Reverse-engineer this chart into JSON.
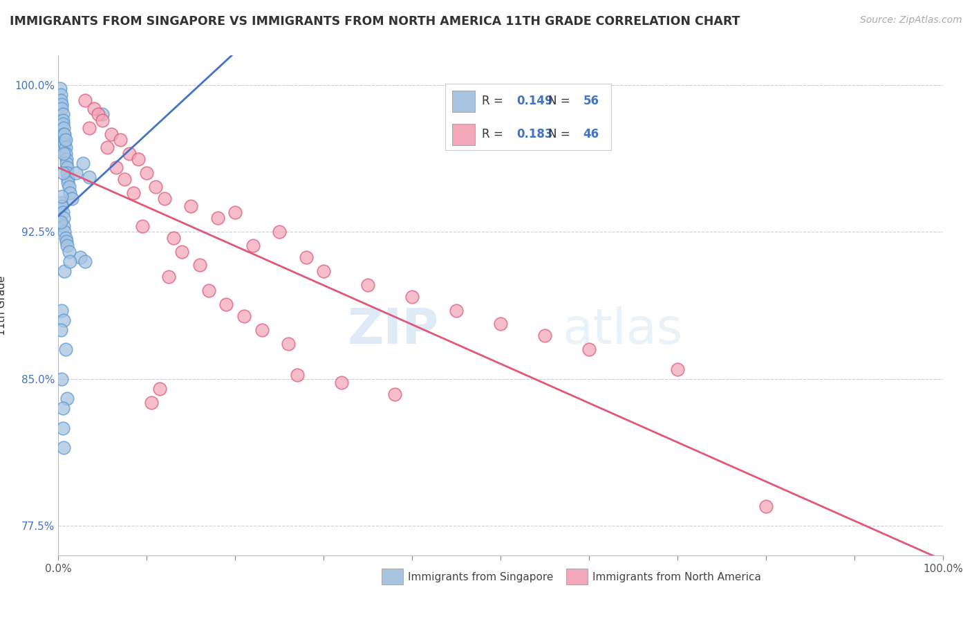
{
  "title": "IMMIGRANTS FROM SINGAPORE VS IMMIGRANTS FROM NORTH AMERICA 11TH GRADE CORRELATION CHART",
  "source": "Source: ZipAtlas.com",
  "ylabel": "11th Grade",
  "yticks": [
    77.5,
    85.0,
    92.5,
    100.0
  ],
  "ytick_labels": [
    "77.5%",
    "85.0%",
    "92.5%",
    "100.0%"
  ],
  "xtick_labels": [
    "0.0%",
    "100.0%"
  ],
  "legend1_label": "Immigrants from Singapore",
  "legend2_label": "Immigrants from North America",
  "R1": 0.149,
  "N1": 56,
  "R2": 0.183,
  "N2": 46,
  "color_blue": "#a8c4e0",
  "color_blue_edge": "#5b9bd5",
  "color_pink": "#f4a7b9",
  "color_pink_edge": "#e05a7a",
  "color_trend_blue": "#4472c4",
  "color_trend_pink": "#e05878",
  "color_text_blue": "#4472c4",
  "watermark_zip": "ZIP",
  "watermark_atlas": "atlas",
  "blue_points_x": [
    0.2,
    0.3,
    0.3,
    0.4,
    0.4,
    0.5,
    0.5,
    0.5,
    0.6,
    0.6,
    0.7,
    0.7,
    0.8,
    0.8,
    0.9,
    0.9,
    1.0,
    1.0,
    1.1,
    1.1,
    1.2,
    1.3,
    1.5,
    0.3,
    0.4,
    0.5,
    0.6,
    0.6,
    0.7,
    0.8,
    0.9,
    1.0,
    1.2,
    2.0,
    2.5,
    2.8,
    3.0,
    3.5,
    5.0,
    0.3,
    0.4,
    0.4,
    0.5,
    0.6,
    0.7,
    0.8,
    1.0,
    0.3,
    0.4,
    0.5,
    0.5,
    0.6,
    0.6,
    0.7,
    0.8,
    1.3
  ],
  "blue_points_y": [
    99.8,
    99.5,
    99.2,
    99.0,
    98.8,
    98.5,
    98.2,
    98.0,
    97.8,
    97.5,
    97.2,
    97.0,
    96.8,
    96.5,
    96.2,
    96.0,
    95.8,
    95.5,
    95.2,
    95.0,
    94.8,
    94.5,
    94.2,
    94.0,
    93.8,
    93.5,
    93.2,
    92.8,
    92.5,
    92.2,
    92.0,
    91.8,
    91.5,
    95.5,
    91.2,
    96.0,
    91.0,
    95.3,
    98.5,
    93.0,
    94.3,
    88.5,
    95.5,
    88.0,
    97.5,
    97.2,
    84.0,
    87.5,
    85.0,
    83.5,
    82.5,
    81.5,
    96.5,
    90.5,
    86.5,
    91.0
  ],
  "pink_points_x": [
    3.0,
    4.0,
    4.5,
    5.0,
    3.5,
    6.0,
    7.0,
    5.5,
    8.0,
    9.0,
    6.5,
    10.0,
    7.5,
    11.0,
    8.5,
    12.0,
    15.0,
    20.0,
    18.0,
    9.5,
    25.0,
    13.0,
    22.0,
    14.0,
    28.0,
    16.0,
    30.0,
    12.5,
    35.0,
    17.0,
    40.0,
    19.0,
    45.0,
    21.0,
    50.0,
    23.0,
    55.0,
    26.0,
    60.0,
    70.0,
    27.0,
    32.0,
    11.5,
    38.0,
    10.5,
    80.0
  ],
  "pink_points_y": [
    99.2,
    98.8,
    98.5,
    98.2,
    97.8,
    97.5,
    97.2,
    96.8,
    96.5,
    96.2,
    95.8,
    95.5,
    95.2,
    94.8,
    94.5,
    94.2,
    93.8,
    93.5,
    93.2,
    92.8,
    92.5,
    92.2,
    91.8,
    91.5,
    91.2,
    90.8,
    90.5,
    90.2,
    89.8,
    89.5,
    89.2,
    88.8,
    88.5,
    88.2,
    87.8,
    87.5,
    87.2,
    86.8,
    86.5,
    85.5,
    85.2,
    84.8,
    84.5,
    84.2,
    83.8,
    78.5
  ],
  "xlim": [
    0,
    100
  ],
  "ylim": [
    76.0,
    101.5
  ]
}
